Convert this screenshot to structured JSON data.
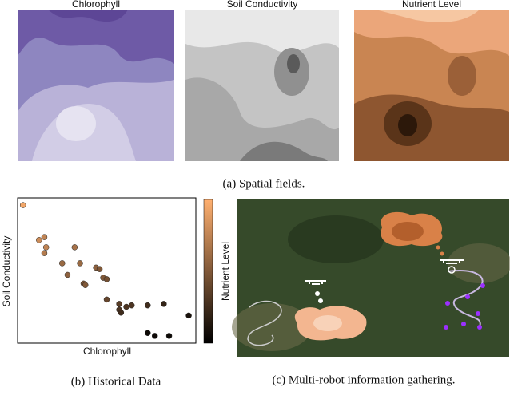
{
  "figure": {
    "spatial_fields": {
      "titles": [
        "Chlorophyll",
        "Soil Conductivity",
        "Nutrient Level"
      ],
      "caption": "(a) Spatial fields."
    },
    "photo": {
      "caption": "(c) Multi-robot information gathering."
    }
  },
  "chart_data": {
    "type": "scatter",
    "xlabel": "Chlorophyll",
    "ylabel": "Soil Conductivity",
    "colorbar_label": "Nutrient Level",
    "caption": "(b) Historical Data",
    "x": [
      0.03,
      0.12,
      0.15,
      0.15,
      0.16,
      0.32,
      0.25,
      0.28,
      0.35,
      0.37,
      0.44,
      0.46,
      0.48,
      0.5,
      0.38,
      0.5,
      0.57,
      0.57,
      0.61,
      0.64,
      0.73,
      0.82,
      0.58,
      0.96,
      0.73,
      0.77,
      0.85
    ],
    "y": [
      0.95,
      0.71,
      0.73,
      0.62,
      0.66,
      0.66,
      0.55,
      0.47,
      0.55,
      0.41,
      0.52,
      0.51,
      0.45,
      0.44,
      0.4,
      0.3,
      0.23,
      0.27,
      0.25,
      0.26,
      0.26,
      0.27,
      0.21,
      0.19,
      0.07,
      0.05,
      0.05
    ],
    "c": [
      0.95,
      0.8,
      0.75,
      0.7,
      0.75,
      0.65,
      0.6,
      0.55,
      0.6,
      0.5,
      0.55,
      0.5,
      0.5,
      0.45,
      0.5,
      0.4,
      0.3,
      0.35,
      0.3,
      0.3,
      0.25,
      0.2,
      0.25,
      0.1,
      0.05,
      0.05,
      0.05
    ],
    "xlim": [
      0,
      1
    ],
    "ylim": [
      0,
      1
    ],
    "clim": [
      0,
      1
    ]
  }
}
